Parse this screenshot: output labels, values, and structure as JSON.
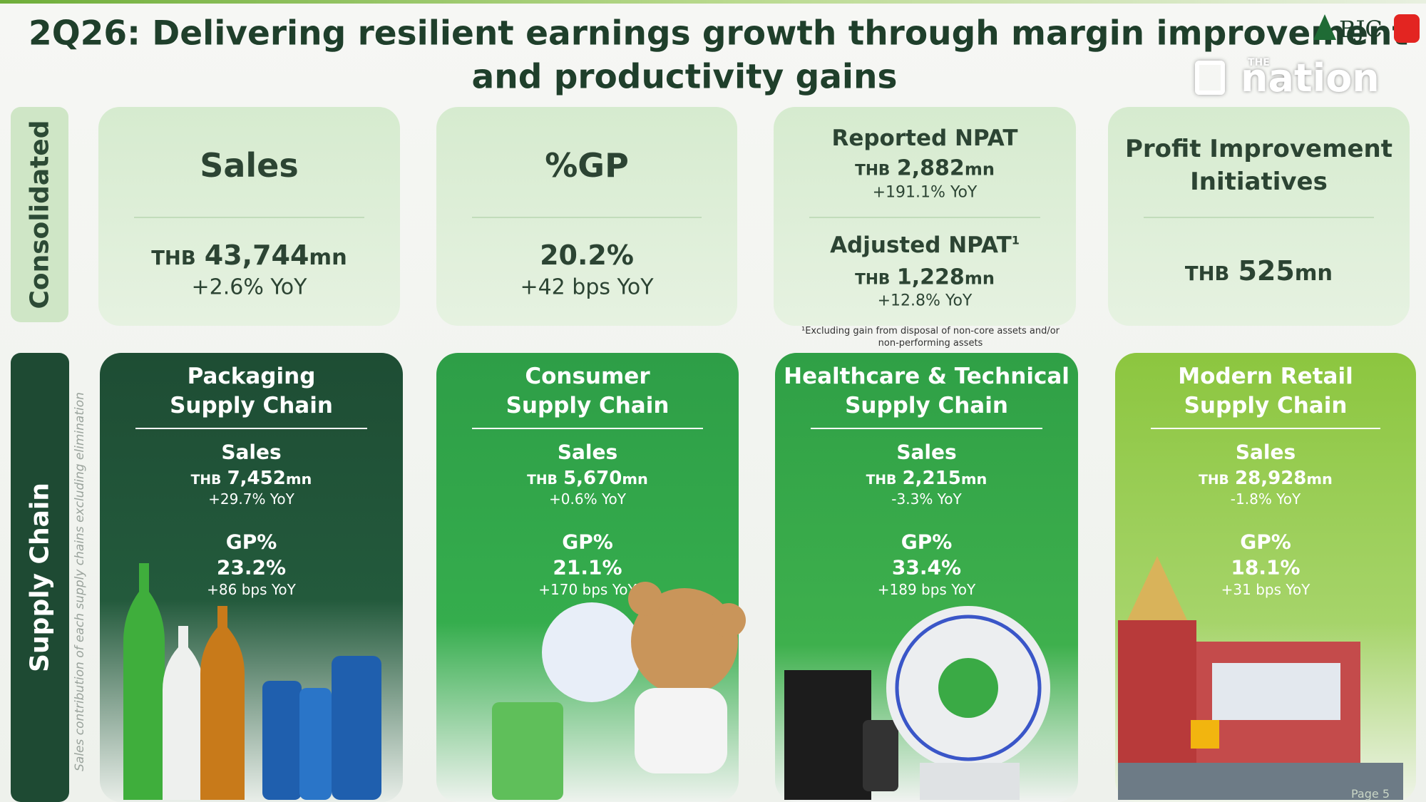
{
  "header": {
    "title_lines": [
      "2Q26: Delivering resilient earnings growth through margin improvement",
      "and productivity gains"
    ]
  },
  "logos": {
    "bjc": "BJC",
    "nation_small": "THE",
    "nation": "nation"
  },
  "side_labels": {
    "consolidated": "Consolidated",
    "supply_chain": "Supply Chain"
  },
  "consolidated": [
    {
      "title": "Sales",
      "currency": "THB",
      "amount": "43,744",
      "unit": "mn",
      "change": "+2.6% YoY"
    },
    {
      "title": "%GP",
      "value": "20.2%",
      "change": "+42 bps YoY"
    },
    {
      "reported": {
        "title": "Reported NPAT",
        "currency": "THB",
        "amount": "2,882",
        "unit": "mn",
        "change": "+191.1% YoY"
      },
      "adjusted": {
        "title": "Adjusted NPAT",
        "note_mark": "1",
        "currency": "THB",
        "amount": "1,228",
        "unit": "mn",
        "change": "+12.8% YoY"
      }
    },
    {
      "title_lines": [
        "Profit Improvement",
        "Initiatives"
      ],
      "currency": "THB",
      "amount": "525",
      "unit": "mn"
    }
  ],
  "footnote": "¹Excluding gain from disposal of non-core assets and/or non-performing assets",
  "supply_note": "Sales contribution of each supply chains excluding elimination",
  "supply_chains": [
    {
      "title_lines": [
        "Packaging",
        "Supply Chain"
      ],
      "sales_label": "Sales",
      "currency": "THB",
      "amount": "7,452",
      "unit": "mn",
      "sales_change": "+29.7% YoY",
      "gp_label": "GP%",
      "gp": "23.2%",
      "gp_change": "+86 bps YoY"
    },
    {
      "title_lines": [
        "Consumer",
        "Supply Chain"
      ],
      "sales_label": "Sales",
      "currency": "THB",
      "amount": "5,670",
      "unit": "mn",
      "sales_change": "+0.6% YoY",
      "gp_label": "GP%",
      "gp": "21.1%",
      "gp_change": "+170 bps YoY"
    },
    {
      "title_lines": [
        "Healthcare & Technical",
        "Supply Chain"
      ],
      "sales_label": "Sales",
      "currency": "THB",
      "amount": "2,215",
      "unit": "mn",
      "sales_change": "-3.3% YoY",
      "gp_label": "GP%",
      "gp": "33.4%",
      "gp_change": "+189 bps YoY"
    },
    {
      "title_lines": [
        "Modern Retail",
        "Supply Chain"
      ],
      "sales_label": "Sales",
      "currency": "THB",
      "amount": "28,928",
      "unit": "mn",
      "sales_change": "-1.8% YoY",
      "gp_label": "GP%",
      "gp": "18.1%",
      "gp_change": "+31 bps YoY"
    }
  ],
  "page": "Page 5"
}
